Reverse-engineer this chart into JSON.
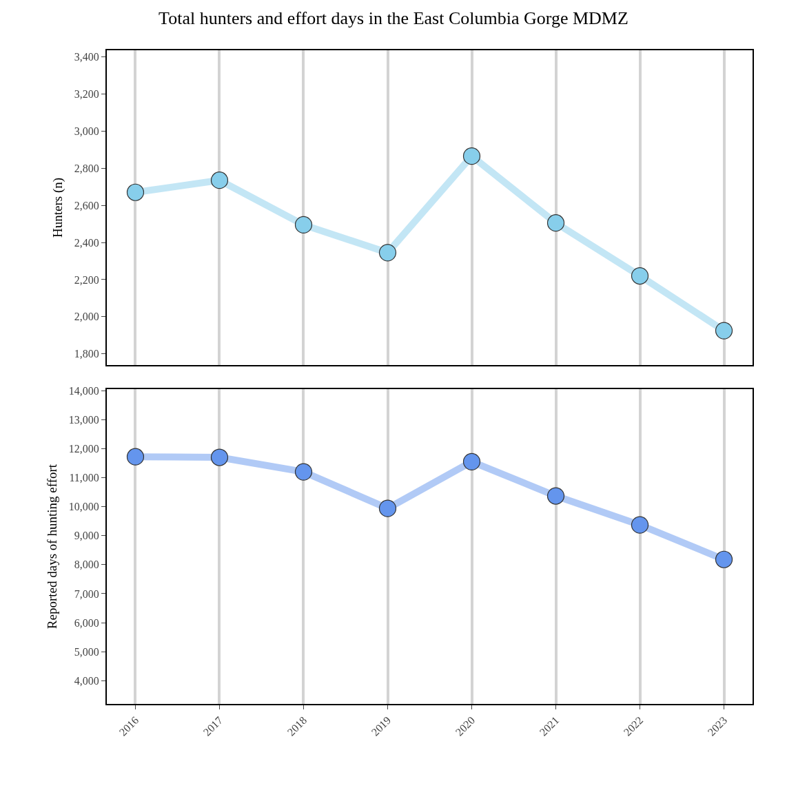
{
  "chart_data": [
    {
      "type": "line",
      "title": "Total hunters and effort days in the East Columbia Gorge MDMZ",
      "ylabel": "Hunters (n)",
      "x": [
        2016,
        2017,
        2018,
        2019,
        2020,
        2021,
        2022,
        2023
      ],
      "series": [
        {
          "color": "#87ceeb",
          "values": [
            2670,
            2735,
            2495,
            2345,
            2865,
            2505,
            2220,
            1925
          ]
        }
      ],
      "xlim": [
        2015.66,
        2023.34
      ],
      "xticks": [
        2016,
        2017,
        2018,
        2019,
        2020,
        2021,
        2022,
        2023
      ],
      "ylim": [
        1740,
        3435
      ],
      "yticks": [
        {
          "value": 1800,
          "label": "1,800"
        },
        {
          "value": 2000,
          "label": "2,000"
        },
        {
          "value": 2200,
          "label": "2,200"
        },
        {
          "value": 2400,
          "label": "2,400"
        },
        {
          "value": 2600,
          "label": "2,600"
        },
        {
          "value": 2800,
          "label": "2,800"
        },
        {
          "value": 3000,
          "label": "3,000"
        },
        {
          "value": 3200,
          "label": "3,200"
        },
        {
          "value": 3400,
          "label": "3,400"
        }
      ],
      "grid": "x",
      "marker": "circle",
      "tick_labels": "y"
    },
    {
      "type": "line",
      "ylabel": "Reported days of hunting effort",
      "x": [
        2016,
        2017,
        2018,
        2019,
        2020,
        2021,
        2022,
        2023
      ],
      "series": [
        {
          "color": "#6495ed",
          "values": [
            11720,
            11700,
            11200,
            9940,
            11550,
            10370,
            9370,
            8180
          ]
        }
      ],
      "xlim": [
        2015.66,
        2023.34
      ],
      "xticks": [
        2016,
        2017,
        2018,
        2019,
        2020,
        2021,
        2022,
        2023
      ],
      "ylim": [
        3200,
        14050
      ],
      "yticks": [
        {
          "value": 4000,
          "label": "4,000"
        },
        {
          "value": 5000,
          "label": "5,000"
        },
        {
          "value": 6000,
          "label": "6,000"
        },
        {
          "value": 7000,
          "label": "7,000"
        },
        {
          "value": 8000,
          "label": "8,000"
        },
        {
          "value": 9000,
          "label": "9,000"
        },
        {
          "value": 10000,
          "label": "10,000"
        },
        {
          "value": 11000,
          "label": "11,000"
        },
        {
          "value": 12000,
          "label": "12,000"
        },
        {
          "value": 13000,
          "label": "13,000"
        },
        {
          "value": 14000,
          "label": "14,000"
        }
      ],
      "grid": "x",
      "marker": "circle"
    }
  ]
}
